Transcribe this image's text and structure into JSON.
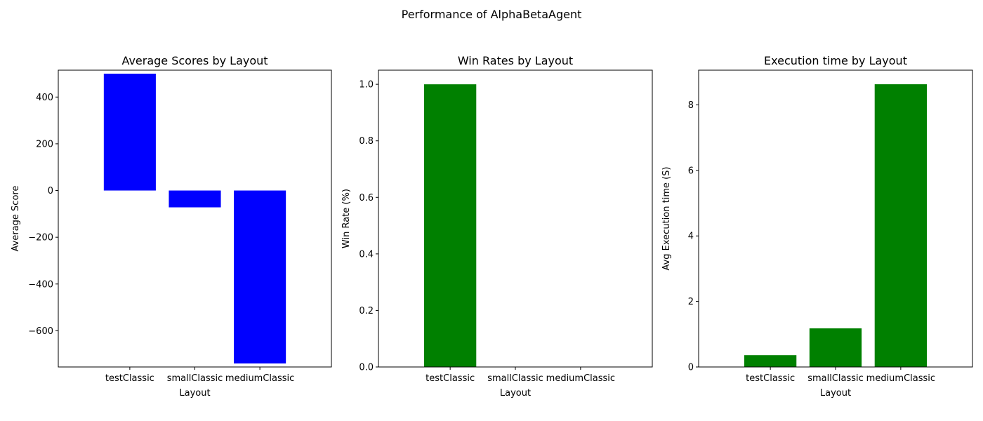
{
  "figure": {
    "suptitle": "Performance of AlphaBetaAgent"
  },
  "chart_data": [
    {
      "type": "bar",
      "title": "Average Scores by Layout",
      "xlabel": "Layout",
      "ylabel": "Average Score",
      "categories": [
        "testClassic",
        "smallClassic",
        "mediumClassic"
      ],
      "values": [
        500,
        -72,
        -740
      ],
      "ylim": [
        -755,
        515
      ],
      "yticks": [
        -600,
        -400,
        -200,
        0,
        200,
        400
      ],
      "ytick_labels": [
        "−600",
        "−400",
        "−200",
        "0",
        "200",
        "400"
      ],
      "color": "#0000ff",
      "grid": false
    },
    {
      "type": "bar",
      "title": "Win Rates by Layout",
      "xlabel": "Layout",
      "ylabel": "Win Rate (%)",
      "categories": [
        "testClassic",
        "smallClassic",
        "mediumClassic"
      ],
      "values": [
        1.0,
        0.0,
        0.0
      ],
      "ylim": [
        0,
        1.05
      ],
      "yticks": [
        0,
        0.2,
        0.4,
        0.6,
        0.8,
        1.0
      ],
      "ytick_labels": [
        "0.0",
        "0.2",
        "0.4",
        "0.6",
        "0.8",
        "1.0"
      ],
      "color": "#008000",
      "grid": false
    },
    {
      "type": "bar",
      "title": "Execution time by Layout",
      "xlabel": "Layout",
      "ylabel": "Avg Execution time (S)",
      "categories": [
        "testClassic",
        "smallClassic",
        "mediumClassic"
      ],
      "values": [
        0.36,
        1.18,
        8.63
      ],
      "ylim": [
        0,
        9.06
      ],
      "yticks": [
        0,
        2,
        4,
        6,
        8
      ],
      "ytick_labels": [
        "0",
        "2",
        "4",
        "6",
        "8"
      ],
      "color": "#008000",
      "grid": false
    }
  ]
}
